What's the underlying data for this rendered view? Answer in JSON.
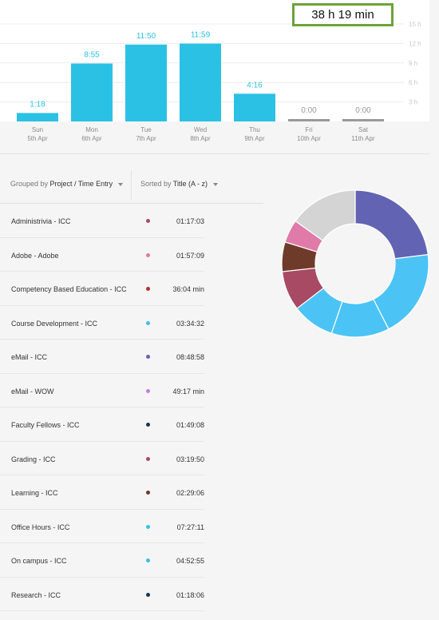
{
  "total": "38 h 19 min",
  "chart_data": {
    "type": "bar",
    "categories": [
      "Sun",
      "Mon",
      "Tue",
      "Wed",
      "Thu",
      "Fri",
      "Sat"
    ],
    "dates": [
      "5th Apr",
      "6th Apr",
      "7th Apr",
      "8th Apr",
      "9th Apr",
      "10th Apr",
      "11th Apr"
    ],
    "labels": [
      "1:18",
      "8:55",
      "11:50",
      "11:59",
      "4:16",
      "0:00",
      "0:00"
    ],
    "values": [
      1.3,
      8.917,
      11.833,
      11.983,
      4.267,
      0,
      0
    ],
    "y_ticks": [
      "3 h",
      "6 h",
      "9 h",
      "12 h",
      "15 h"
    ],
    "y_tick_values": [
      3,
      6,
      9,
      12,
      15
    ],
    "ylim": [
      0,
      15
    ],
    "bar_color": "#2bc1e4",
    "zero_color": "#999999"
  },
  "toolbar": {
    "grouped_prefix": "Grouped by",
    "grouped_value": "Project / Time Entry",
    "sorted_prefix": "Sorted by",
    "sorted_value": "Title (A - z)"
  },
  "entries": [
    {
      "title": "Administrivia - ICC",
      "duration": "01:17:03",
      "color": "#a84a63"
    },
    {
      "title": "Adobe - Adobe",
      "duration": "01:57:09",
      "color": "#e07aa8"
    },
    {
      "title": "Competency Based Education - ICC",
      "duration": "36:04 min",
      "color": "#b4312a"
    },
    {
      "title": "Course Development - ICC",
      "duration": "03:34:32",
      "color": "#3dbde6"
    },
    {
      "title": "eMail - ICC",
      "duration": "08:48:58",
      "color": "#6264b3"
    },
    {
      "title": "eMail - WOW",
      "duration": "49:17 min",
      "color": "#c77ed8"
    },
    {
      "title": "Faculty Fellows - ICC",
      "duration": "01:49:08",
      "color": "#0f3a4f"
    },
    {
      "title": "Grading - ICC",
      "duration": "03:19:50",
      "color": "#a84a63"
    },
    {
      "title": "Learning - ICC",
      "duration": "02:29:06",
      "color": "#6e3b2a"
    },
    {
      "title": "Office Hours - ICC",
      "duration": "07:27:11",
      "color": "#3dbde6"
    },
    {
      "title": "On campus - ICC",
      "duration": "04:52:55",
      "color": "#3dbde6"
    },
    {
      "title": "Research - ICC",
      "duration": "01:18:06",
      "color": "#0f3a4f"
    }
  ],
  "donut": {
    "slices": [
      {
        "value": 8.82,
        "color": "#6264b3"
      },
      {
        "value": 7.45,
        "color": "#4cc3f5"
      },
      {
        "value": 4.88,
        "color": "#4cc3f5"
      },
      {
        "value": 3.58,
        "color": "#4cc3f5"
      },
      {
        "value": 3.33,
        "color": "#a84a63"
      },
      {
        "value": 2.49,
        "color": "#6e3b2a"
      },
      {
        "value": 1.95,
        "color": "#e07aa8"
      },
      {
        "value": 5.8,
        "color": "#d4d4d4"
      }
    ]
  }
}
